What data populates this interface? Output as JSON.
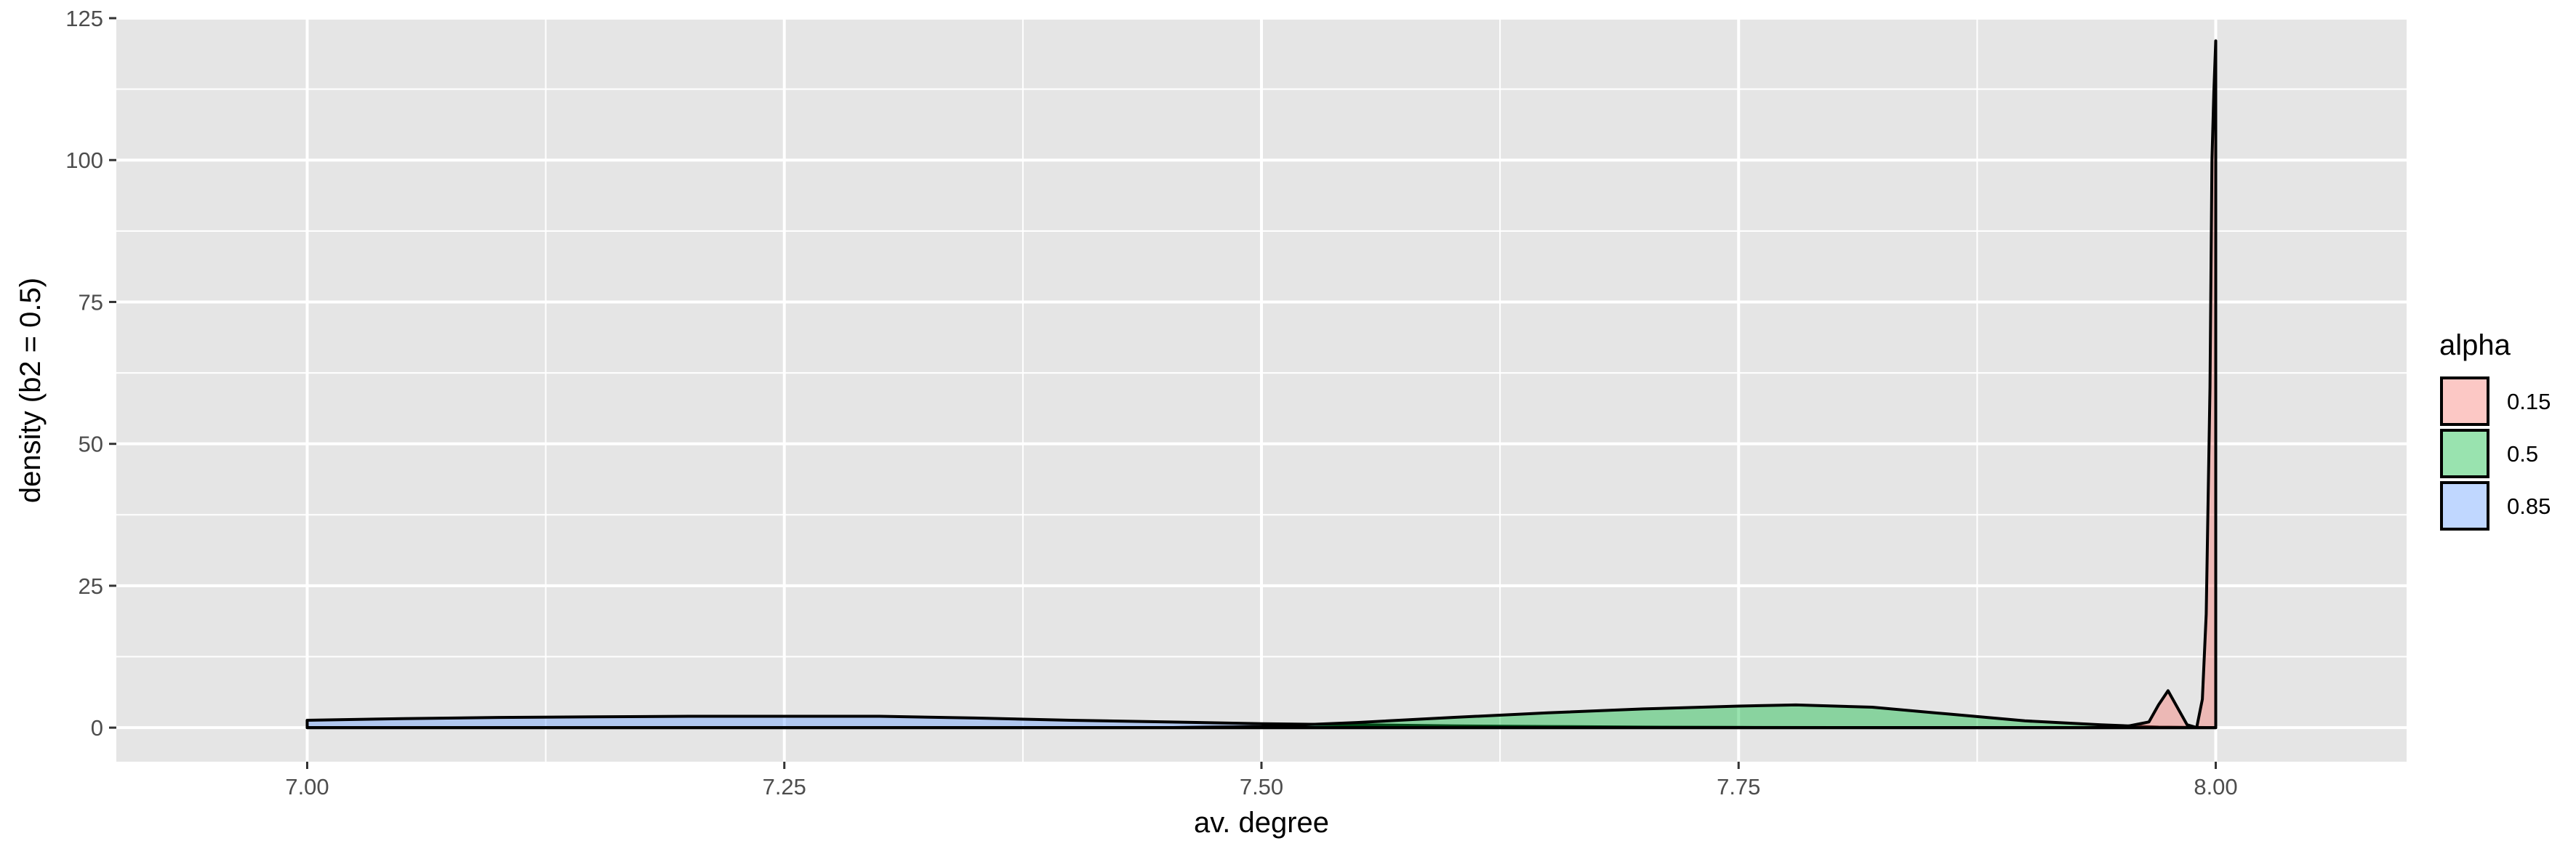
{
  "chart_data": {
    "type": "area",
    "xlabel": "av. degree",
    "ylabel": "density (b2 = 0.5)",
    "xlim": [
      6.9,
      8.1
    ],
    "ylim": [
      -6,
      125
    ],
    "x_ticks": [
      7.0,
      7.25,
      7.5,
      7.75,
      8.0
    ],
    "x_tick_labels": [
      "7.00",
      "7.25",
      "7.50",
      "7.75",
      "8.00"
    ],
    "y_ticks": [
      0,
      25,
      50,
      75,
      100,
      125
    ],
    "y_tick_labels": [
      "0",
      "25",
      "50",
      "75",
      "100",
      "125"
    ],
    "grid": true,
    "legend": {
      "title": "alpha",
      "position": "right",
      "entries": [
        "0.15",
        "0.5",
        "0.85"
      ]
    },
    "colors": {
      "0.15": "#F8766D",
      "0.5": "#00BA38",
      "0.85": "#619CFF",
      "panel": "#E5E5E5",
      "grid": "#FFFFFF",
      "outline": "#000000"
    },
    "fill_alpha": 0.4,
    "series": [
      {
        "name": "0.85",
        "x": [
          7.0,
          7.05,
          7.1,
          7.15,
          7.2,
          7.25,
          7.3,
          7.35,
          7.4,
          7.45,
          7.5,
          7.55,
          7.6,
          7.65,
          7.7,
          7.75,
          7.8,
          7.85,
          7.9,
          7.95,
          8.0
        ],
        "y": [
          1.3,
          1.6,
          1.8,
          1.9,
          2.0,
          2.0,
          2.0,
          1.7,
          1.3,
          1.0,
          0.7,
          0.5,
          0.3,
          0.2,
          0.1,
          0.05,
          0.02,
          0.01,
          0.0,
          0.0,
          0.0
        ]
      },
      {
        "name": "0.5",
        "x": [
          7.0,
          7.45,
          7.5,
          7.55,
          7.6,
          7.65,
          7.7,
          7.75,
          7.78,
          7.82,
          7.86,
          7.9,
          7.94,
          7.97,
          8.0
        ],
        "y": [
          0.0,
          0.0,
          0.2,
          0.9,
          1.8,
          2.6,
          3.3,
          3.8,
          4.0,
          3.6,
          2.4,
          1.2,
          0.5,
          0.1,
          0.0
        ]
      },
      {
        "name": "0.15",
        "x": [
          7.0,
          7.95,
          7.965,
          7.97,
          7.975,
          7.98,
          7.985,
          7.99,
          7.993,
          7.995,
          7.997,
          7.998,
          7.999,
          8.0
        ],
        "y": [
          0.0,
          0.0,
          1.0,
          4.0,
          6.5,
          3.5,
          0.5,
          0.0,
          5.0,
          20.0,
          60.0,
          100.0,
          112.0,
          121.0
        ]
      }
    ]
  }
}
